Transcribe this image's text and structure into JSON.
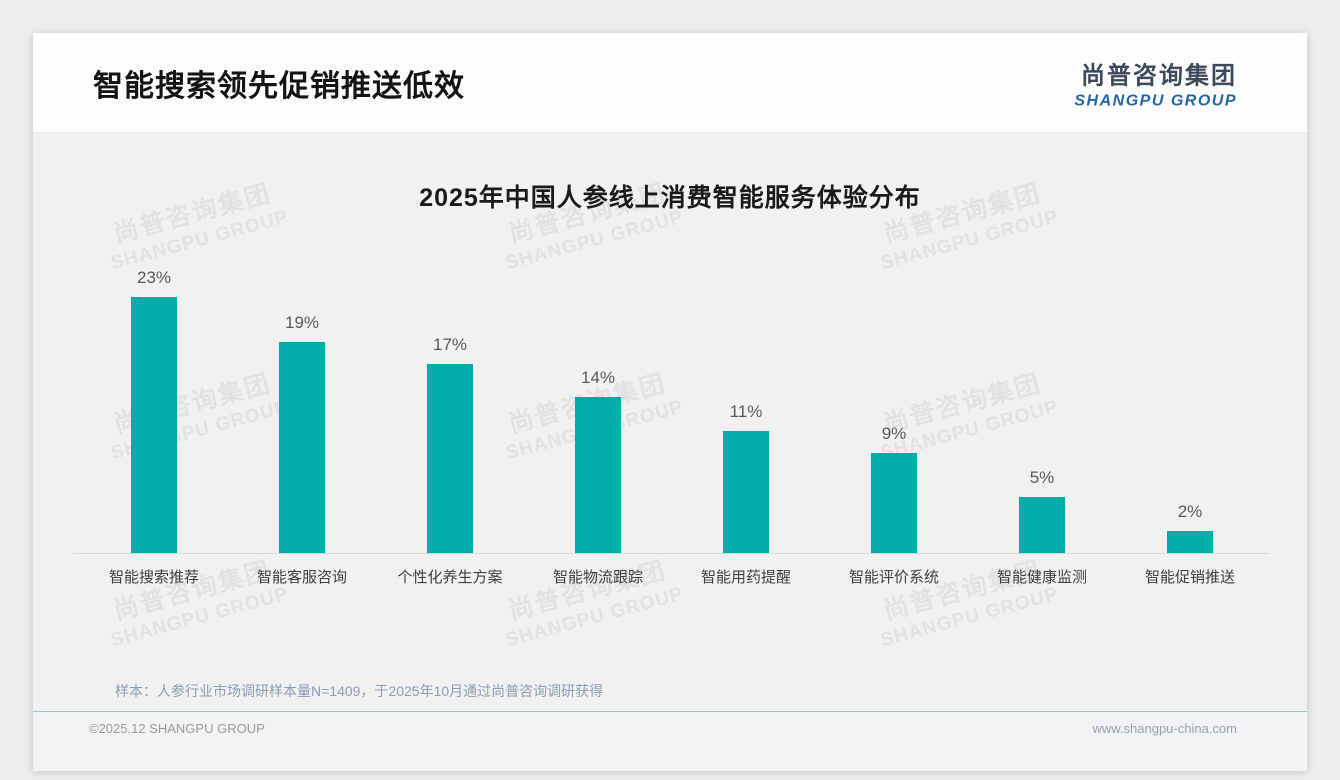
{
  "page": {
    "title": "智能搜索领先促销推送低效",
    "logo": {
      "cn": "尚普咨询集团",
      "en": "SHANGPU GROUP"
    },
    "watermark": {
      "cn": "尚普咨询集团",
      "en": "SHANGPU GROUP"
    },
    "note": "样本：人参行业市场调研样本量N=1409，于2025年10月通过尚普咨询调研获得",
    "footer_left": "©2025.12 SHANGPU GROUP",
    "footer_right": "www.shangpu-china.com",
    "colors": {
      "bar": "#00ACA8",
      "logo_blue": "#2765A8",
      "title_text": "#141414"
    }
  },
  "chart_data": {
    "type": "bar",
    "title": "2025年中国人参线上消费智能服务体验分布",
    "categories": [
      "智能搜索推荐",
      "智能客服咨询",
      "个性化养生方案",
      "智能物流跟踪",
      "智能用药提醒",
      "智能评价系统",
      "智能健康监测",
      "智能促销推送"
    ],
    "values": [
      23,
      19,
      17,
      14,
      11,
      9,
      5,
      2
    ],
    "unit": "%",
    "data_labels": [
      "23%",
      "19%",
      "17%",
      "14%",
      "11%",
      "9%",
      "5%",
      "2%"
    ],
    "xlabel": "",
    "ylabel": "",
    "ylim": [
      0,
      25
    ],
    "grid": false,
    "legend": false,
    "bar_color": "#00ACA8"
  }
}
